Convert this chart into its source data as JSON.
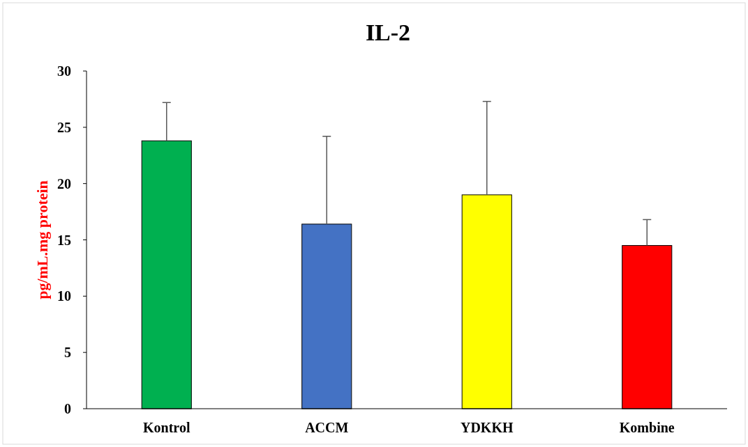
{
  "chart_data": {
    "type": "bar",
    "title": "IL-2",
    "ylabel": "pg/mL.mg protein",
    "categories": [
      "Kontrol",
      "ACCM",
      "YDKKH",
      "Kombine"
    ],
    "values": [
      23.8,
      16.4,
      19.0,
      14.5
    ],
    "colors": [
      "#00b050",
      "#4472c4",
      "#ffff00",
      "#ff0000"
    ],
    "errors": [
      [
        23.8,
        27.2
      ],
      [
        16.4,
        24.2
      ],
      [
        19.0,
        27.3
      ],
      [
        14.5,
        16.8
      ]
    ],
    "ylim": [
      0,
      30
    ],
    "yticks": [
      0,
      5,
      10,
      15,
      20,
      25,
      30
    ],
    "grid": false
  }
}
